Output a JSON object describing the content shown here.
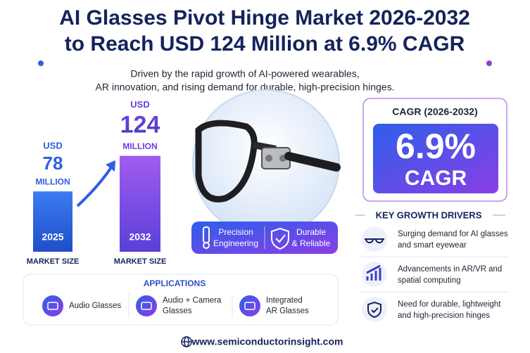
{
  "title": [
    "AI Glasses Pivot Hinge Market 2026-2032",
    "to Reach USD 124 Million at 6.9% CAGR"
  ],
  "subtitle": [
    "Driven by the rapid growth of AI-powered wearables,",
    "AR innovation, and rising demand for durable, high-precision hinges."
  ],
  "market": {
    "bars": [
      {
        "currency": "USD",
        "value": 78,
        "unit": "MILLION",
        "year": "2025",
        "label": "MARKET SIZE"
      },
      {
        "currency": "USD",
        "value": 124,
        "unit": "MILLION",
        "year": "2032",
        "label": "MARKET SIZE"
      }
    ]
  },
  "features": [
    [
      "Precision",
      "Engineering"
    ],
    [
      "Durable",
      "& Reliable"
    ]
  ],
  "cagr": {
    "title": "CAGR (2026-2032)",
    "value": "6.9%",
    "label": "CAGR"
  },
  "drivers": {
    "title": "KEY GROWTH DRIVERS",
    "items": [
      [
        "Surging demand for AI glasses",
        "and smart eyewear"
      ],
      [
        "Advancements in AR/VR and",
        "spatial computing"
      ],
      [
        "Need for durable, lightweight",
        "and high-precision hinges"
      ]
    ]
  },
  "applications": {
    "title": "APPLICATIONS",
    "items": [
      [
        "Audio Glasses"
      ],
      [
        "Audio + Camera",
        "Glasses"
      ],
      [
        "Integrated",
        "AR Glasses"
      ]
    ]
  },
  "footer": {
    "url": "www.semiconductorinsight.com"
  }
}
